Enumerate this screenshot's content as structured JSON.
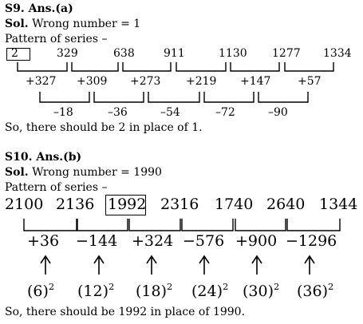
{
  "s9": {
    "heading": "S9. Ans.(a)",
    "sol_label": "Sol.",
    "sol_text": " Wrong number = 1",
    "pattern": "Pattern of series –",
    "terms": [
      "2",
      "329",
      "638",
      "911",
      "1130",
      "1277",
      "1334"
    ],
    "diffs1": [
      "+327",
      "+309",
      "+273",
      "+219",
      "+147",
      "+57"
    ],
    "diffs2": [
      "–18",
      "–36",
      "–54",
      "–72",
      "–90"
    ],
    "conclusion": "So, there should be 2 in place of 1."
  },
  "s10": {
    "heading": "S10. Ans.(b)",
    "sol_label": "Sol.",
    "sol_text": " Wrong number = 1990",
    "pattern": "Pattern of series –",
    "terms": [
      "2100",
      "2136",
      "1992",
      "2316",
      "1740",
      "2640",
      "1344"
    ],
    "diffs": [
      "+36",
      "−144",
      "+324",
      "−576",
      "+900",
      "−1296"
    ],
    "bases": [
      "(6)",
      "(12)",
      "(18)",
      "(24)",
      "(30)",
      "(36)"
    ],
    "exponent": "2",
    "conclusion": "So, there should be 1992 in place of 1990."
  }
}
